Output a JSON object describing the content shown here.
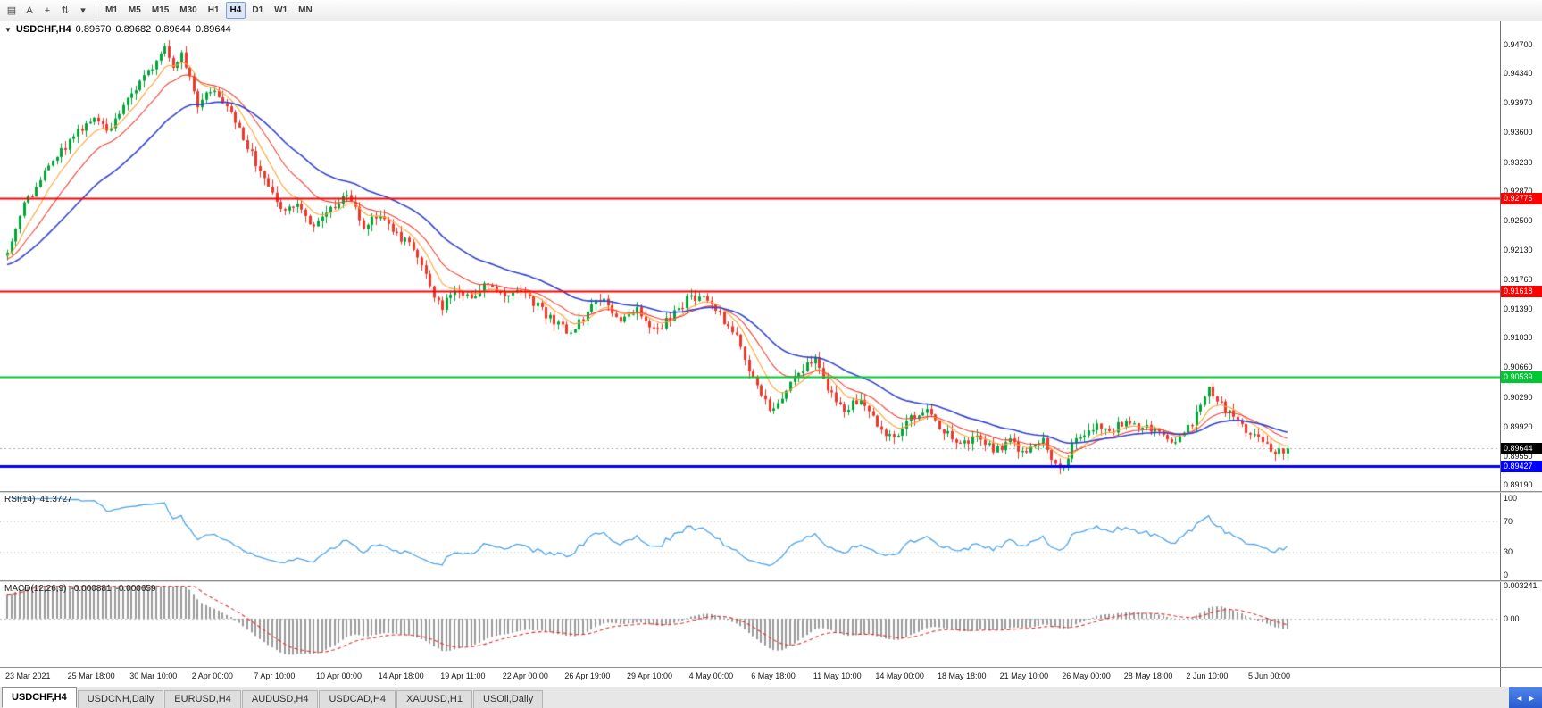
{
  "toolbar": {
    "icons": [
      {
        "name": "chart-window-icon",
        "glyph": "▤"
      },
      {
        "name": "annotation-text-icon",
        "glyph": "A"
      },
      {
        "name": "crosshair-icon",
        "glyph": "+"
      },
      {
        "name": "indicators-icon",
        "glyph": "⇅"
      },
      {
        "name": "indicators-dropdown-caret-icon",
        "glyph": "▾"
      }
    ],
    "timeframes": [
      "M1",
      "M5",
      "M15",
      "M30",
      "H1",
      "H4",
      "D1",
      "W1",
      "MN"
    ],
    "active_timeframe": "H4"
  },
  "chart": {
    "title_symbol": "USDCHF,H4",
    "collapse_arrow": "▼",
    "ohlc": {
      "open": "0.89670",
      "high": "0.89682",
      "low": "0.89644",
      "close": "0.89644"
    },
    "price_ticks": [
      "0.94700",
      "0.94340",
      "0.93970",
      "0.93600",
      "0.93230",
      "0.92870",
      "0.92500",
      "0.92130",
      "0.91760",
      "0.91390",
      "0.91030",
      "0.90660",
      "0.90290",
      "0.89920",
      "0.89550",
      "0.89190"
    ],
    "levels": [
      {
        "name": "resistance-level-upper",
        "price": 0.92775,
        "label": "0.92775",
        "color": "#FF0000",
        "width": 2
      },
      {
        "name": "resistance-level-lower",
        "price": 0.91618,
        "label": "0.91618",
        "color": "#FF0000",
        "width": 2
      },
      {
        "name": "support-level-green",
        "price": 0.90539,
        "label": "0.90539",
        "color": "#00C832",
        "width": 2
      },
      {
        "name": "support-level-blue",
        "price": 0.89427,
        "label": "0.89427",
        "color": "#0000FF",
        "width": 3
      }
    ],
    "current_price": {
      "price": 0.89644,
      "label": "0.89644",
      "badge_color": "#000000"
    }
  },
  "rsi": {
    "name": "RSI(14)",
    "value": "41.3727",
    "ticks": [
      "100",
      "70",
      "30",
      "0"
    ],
    "level_lines": [
      70,
      30
    ]
  },
  "macd": {
    "name": "MACD(12,26,9)",
    "value_main": "-0.000881",
    "value_signal": "-0.000659",
    "tick_top": "0.003241",
    "tick_zero": "0.00"
  },
  "time_axis": [
    "23 Mar 2021",
    "25 Mar 18:00",
    "30 Mar 10:00",
    "2 Apr 00:00",
    "7 Apr 10:00",
    "10 Apr 00:00",
    "14 Apr 18:00",
    "19 Apr 11:00",
    "22 Apr 00:00",
    "26 Apr 19:00",
    "29 Apr 10:00",
    "4 May 00:00",
    "6 May 18:00",
    "11 May 10:00",
    "14 May 00:00",
    "18 May 18:00",
    "21 May 10:00",
    "26 May 00:00",
    "28 May 18:00",
    "2 Jun 10:00",
    "5 Jun 00:00"
  ],
  "tabs": [
    {
      "label": "USDCHF,H4",
      "active": true
    },
    {
      "label": "USDCNH,Daily",
      "active": false
    },
    {
      "label": "EURUSD,H4",
      "active": false
    },
    {
      "label": "AUDUSD,H4",
      "active": false
    },
    {
      "label": "USDCAD,H4",
      "active": false
    },
    {
      "label": "XAUUSD,H1",
      "active": false
    },
    {
      "label": "USOil,Daily",
      "active": false
    }
  ],
  "tab_scroll": {
    "left_arrow": "◄",
    "right_arrow": "►"
  },
  "chart_data": {
    "type": "candlestick",
    "symbol": "USDCHF",
    "timeframe": "H4",
    "candle_count": 310,
    "price_max": 0.94991,
    "price_min": 0.89112,
    "noise": 0.0011,
    "wick": 0.0009,
    "price_path": [
      [
        0,
        0.9215
      ],
      [
        4,
        0.9268
      ],
      [
        8,
        0.93
      ],
      [
        12,
        0.933
      ],
      [
        16,
        0.9355
      ],
      [
        20,
        0.9378
      ],
      [
        24,
        0.9362
      ],
      [
        28,
        0.9396
      ],
      [
        32,
        0.942
      ],
      [
        36,
        0.9452
      ],
      [
        38,
        0.9472
      ],
      [
        40,
        0.9442
      ],
      [
        42,
        0.9461
      ],
      [
        44,
        0.9432
      ],
      [
        46,
        0.9392
      ],
      [
        48,
        0.9406
      ],
      [
        50,
        0.9417
      ],
      [
        54,
        0.9382
      ],
      [
        58,
        0.9342
      ],
      [
        62,
        0.9302
      ],
      [
        66,
        0.9262
      ],
      [
        70,
        0.9272
      ],
      [
        74,
        0.9242
      ],
      [
        78,
        0.9266
      ],
      [
        82,
        0.9281
      ],
      [
        86,
        0.9243
      ],
      [
        90,
        0.9257
      ],
      [
        94,
        0.9232
      ],
      [
        98,
        0.9216
      ],
      [
        102,
        0.9166
      ],
      [
        105,
        0.9142
      ],
      [
        108,
        0.9162
      ],
      [
        112,
        0.9156
      ],
      [
        116,
        0.9172
      ],
      [
        120,
        0.9157
      ],
      [
        124,
        0.9162
      ],
      [
        128,
        0.9142
      ],
      [
        132,
        0.9122
      ],
      [
        136,
        0.9107
      ],
      [
        140,
        0.9137
      ],
      [
        144,
        0.9152
      ],
      [
        148,
        0.9122
      ],
      [
        152,
        0.9137
      ],
      [
        156,
        0.9112
      ],
      [
        160,
        0.9127
      ],
      [
        164,
        0.9152
      ],
      [
        168,
        0.9157
      ],
      [
        172,
        0.9132
      ],
      [
        176,
        0.9102
      ],
      [
        180,
        0.9052
      ],
      [
        184,
        0.9012
      ],
      [
        188,
        0.9037
      ],
      [
        192,
        0.9062
      ],
      [
        195,
        0.9082
      ],
      [
        198,
        0.9042
      ],
      [
        202,
        0.9012
      ],
      [
        206,
        0.9027
      ],
      [
        210,
        0.8992
      ],
      [
        214,
        0.8977
      ],
      [
        218,
        0.9002
      ],
      [
        222,
        0.9012
      ],
      [
        226,
        0.8987
      ],
      [
        230,
        0.8967
      ],
      [
        234,
        0.8982
      ],
      [
        238,
        0.8962
      ],
      [
        242,
        0.8972
      ],
      [
        246,
        0.8957
      ],
      [
        250,
        0.8977
      ],
      [
        252,
        0.8952
      ],
      [
        254,
        0.8936
      ],
      [
        256,
        0.8956
      ],
      [
        258,
        0.8977
      ],
      [
        262,
        0.8992
      ],
      [
        266,
        0.8987
      ],
      [
        270,
        0.8997
      ],
      [
        274,
        0.8992
      ],
      [
        278,
        0.8987
      ],
      [
        282,
        0.8972
      ],
      [
        286,
        0.8997
      ],
      [
        290,
        0.9042
      ],
      [
        294,
        0.9012
      ],
      [
        298,
        0.8992
      ],
      [
        302,
        0.8977
      ],
      [
        306,
        0.8962
      ],
      [
        309,
        0.89644
      ]
    ],
    "ma_periods": {
      "fast": 8,
      "medium": 16,
      "slow": 34
    },
    "rsi_period": 14,
    "macd_params": {
      "fast": 12,
      "slow": 26,
      "signal": 9
    },
    "macd_scale": {
      "max": 0.003241,
      "min": -0.004476
    },
    "colors": {
      "bull": "#00A437",
      "bear": "#F1342A",
      "ma_fast": "#FFA033",
      "ma_medium": "#EE4135",
      "ma_slow": "#3344CC",
      "rsi_line": "#4DA3E8",
      "macd_hist": "#9A9A9A",
      "macd_signal": "#E03030",
      "current_line": "#AAAAAA"
    }
  }
}
